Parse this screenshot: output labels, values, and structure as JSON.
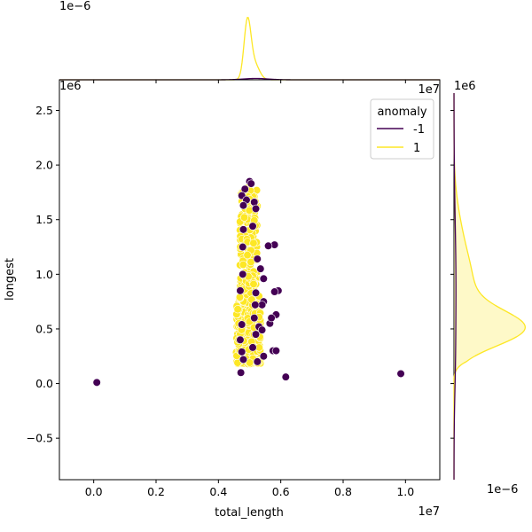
{
  "chart_data": {
    "type": "scatter",
    "xlabel": "total_length",
    "ylabel": "longest",
    "x_offset_label": "1e7",
    "y_offset_label": "1e6",
    "top_marginal_offset_label": "1e−6",
    "right_marginal_offset_label": "1e−6",
    "right_marginal_top_label": "1e6",
    "top_marginal_right_label": "1e7",
    "xlim": [
      -0.11,
      1.11
    ],
    "ylim": [
      -0.88,
      2.78
    ],
    "x_ticks": [
      0.0,
      0.2,
      0.4,
      0.6,
      0.8,
      1.0
    ],
    "x_tick_labels": [
      "0.0",
      "0.2",
      "0.4",
      "0.6",
      "0.8",
      "1.0"
    ],
    "y_ticks": [
      -0.5,
      0.0,
      0.5,
      1.0,
      1.5,
      2.0,
      2.5
    ],
    "y_tick_labels": [
      "−0.5",
      "0.0",
      "0.5",
      "1.0",
      "1.5",
      "2.0",
      "2.5"
    ],
    "legend": {
      "title": "anomaly",
      "placement": "top-right",
      "entries": [
        {
          "label": "-1",
          "color": "#440154"
        },
        {
          "label": "1",
          "color": "#fde725"
        }
      ]
    },
    "series": [
      {
        "name": "-1",
        "color": "#440154",
        "points": [
          [
            0.01,
            0.01
          ],
          [
            0.985,
            0.09
          ],
          [
            0.616,
            0.06
          ],
          [
            0.472,
            0.1
          ],
          [
            0.58,
            1.27
          ],
          [
            0.56,
            1.26
          ],
          [
            0.592,
            0.85
          ],
          [
            0.58,
            0.84
          ],
          [
            0.565,
            0.55
          ],
          [
            0.585,
            0.63
          ],
          [
            0.57,
            0.6
          ],
          [
            0.575,
            0.3
          ],
          [
            0.585,
            0.3
          ],
          [
            0.545,
            0.25
          ],
          [
            0.525,
            0.2
          ],
          [
            0.53,
            0.52
          ],
          [
            0.54,
            0.49
          ],
          [
            0.545,
            0.75
          ],
          [
            0.54,
            0.72
          ],
          [
            0.545,
            0.96
          ],
          [
            0.535,
            1.05
          ],
          [
            0.525,
            1.14
          ],
          [
            0.478,
            1.25
          ],
          [
            0.5,
            1.85
          ],
          [
            0.505,
            1.83
          ],
          [
            0.485,
            1.78
          ],
          [
            0.475,
            1.72
          ],
          [
            0.49,
            1.68
          ],
          [
            0.515,
            1.66
          ],
          [
            0.48,
            1.63
          ],
          [
            0.52,
            1.6
          ],
          [
            0.51,
            1.44
          ],
          [
            0.48,
            1.41
          ],
          [
            0.478,
            1.0
          ],
          [
            0.47,
            0.85
          ],
          [
            0.52,
            0.83
          ],
          [
            0.47,
            0.4
          ],
          [
            0.475,
            0.29
          ],
          [
            0.48,
            0.22
          ],
          [
            0.52,
            0.45
          ],
          [
            0.475,
            0.54
          ],
          [
            0.51,
            0.33
          ],
          [
            0.515,
            0.6
          ],
          [
            0.518,
            0.72
          ]
        ]
      },
      {
        "name": "1",
        "color": "#fde725",
        "points": []
      }
    ],
    "top_marginal": {
      "peak_x": 0.493,
      "series_minus1_line": true
    },
    "right_marginal": {
      "peak_y": 0.5,
      "filled": true
    }
  }
}
